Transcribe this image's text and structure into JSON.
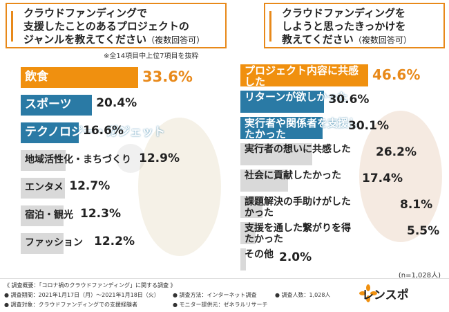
{
  "chart_data": [
    {
      "type": "bar",
      "title": "クラウドファンディングで支援したことのあるプロジェクトのジャンルを教えてください",
      "subtitle": "（複数回答可）",
      "note": "※全14項目中上位7項目を抜粋",
      "categories": [
        "飲食",
        "スポーツ",
        "テクノロジー・ガジェット",
        "地域活性化・まちづくり",
        "エンタメ",
        "宿泊・観光",
        "ファッション"
      ],
      "values": [
        33.6,
        20.4,
        16.6,
        12.9,
        12.7,
        12.3,
        12.2
      ],
      "value_labels": [
        "33.6%",
        "20.4%",
        "16.6%",
        "12.9%",
        "12.7%",
        "12.3%",
        "12.2%"
      ],
      "colors": [
        "#f0900f",
        "#2a7aa5",
        "#2a7aa5",
        "#d9d9d9",
        "#d9d9d9",
        "#d9d9d9",
        "#d9d9d9"
      ]
    },
    {
      "type": "bar",
      "title": "クラウドファンディングをしようと思ったきっかけを教えてください",
      "subtitle": "（複数回答可）",
      "categories": [
        "プロジェクト内容に共感した",
        "リターンが欲しかった",
        "実行者や関係者を支援したかった",
        "実行者の想いに共感した",
        "社会に貢献したかった",
        "課題解決の手助けがしたかった",
        "支援を通した繋がりを得たかった",
        "その他"
      ],
      "values": [
        46.6,
        30.6,
        30.1,
        26.2,
        17.4,
        8.1,
        5.5,
        2.0
      ],
      "value_labels": [
        "46.6%",
        "30.6%",
        "30.1%",
        "26.2%",
        "17.4%",
        "8.1%",
        "5.5%",
        "2.0%"
      ],
      "colors": [
        "#f0900f",
        "#2a7aa5",
        "#2a7aa5",
        "#d9d9d9",
        "#d9d9d9",
        "#d9d9d9",
        "#d9d9d9",
        "#d9d9d9"
      ],
      "n_label": "(n=1,028人)"
    }
  ],
  "footer": {
    "overview": "《 調査概要：「コロナ禍のクラウドファンディング」に関する調査 》",
    "period": "● 調査期間：2021年1月17日（月）～2021年1月18日（火）",
    "method": "● 調査方法：インターネット調査",
    "count": "● 調査人数：1,028人",
    "target": "● 調査対象：クラウドファンディングでの支援経験者",
    "provider": "● モニター提供元：ゼネラルリサーチ",
    "logo": "レンスポ"
  }
}
